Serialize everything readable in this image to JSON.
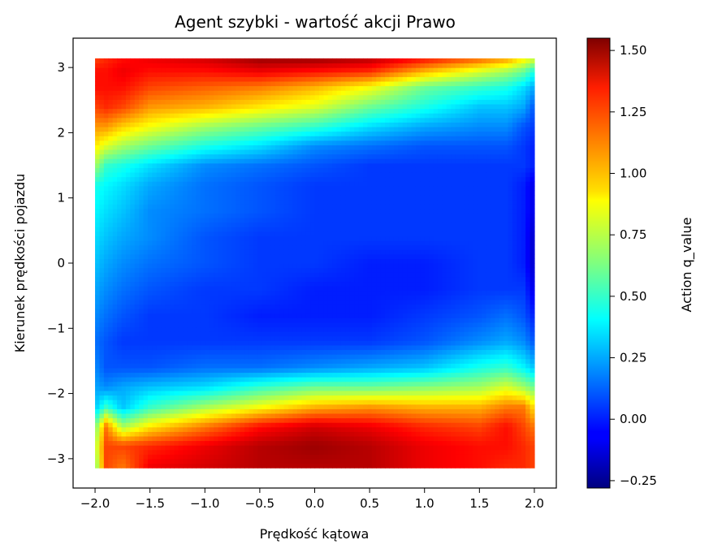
{
  "chart_data": {
    "type": "heatmap",
    "title": "Agent szybki - wartość akcji Prawo",
    "xlabel": "Prędkość kątowa",
    "ylabel": "Kierunek prędkości pojazdu",
    "xlim": [
      -2.2,
      2.2
    ],
    "ylim": [
      -3.45,
      3.45
    ],
    "x_ticks": [
      "−2.0",
      "−1.5",
      "−1.0",
      "−0.5",
      "0.0",
      "0.5",
      "1.0",
      "1.5",
      "2.0"
    ],
    "y_ticks": [
      "−3",
      "−2",
      "−1",
      "0",
      "1",
      "2",
      "3"
    ],
    "x_tick_values": [
      -2.0,
      -1.5,
      -1.0,
      -0.5,
      0.0,
      0.5,
      1.0,
      1.5,
      2.0
    ],
    "y_tick_values": [
      -3,
      -2,
      -1,
      0,
      1,
      2,
      3
    ],
    "x_range": [
      -2.0,
      2.0
    ],
    "y_range": [
      -3.14,
      3.14
    ],
    "y_grid": [
      -3.14,
      -2.8,
      -2.5,
      -2.2,
      -1.9,
      -1.6,
      -1.2,
      -0.8,
      -0.4,
      0.0,
      0.4,
      0.8,
      1.2,
      1.5,
      1.8,
      2.1,
      2.4,
      2.7,
      2.95,
      3.14
    ],
    "x_grid": [
      -2.0,
      -1.9,
      -1.75,
      -1.5,
      -1.0,
      -0.5,
      0.0,
      0.5,
      1.0,
      1.5,
      1.75,
      1.9,
      2.0
    ],
    "z": [
      [
        0.6,
        1.2,
        1.1,
        1.35,
        1.4,
        1.45,
        1.45,
        1.45,
        1.35,
        1.3,
        1.25,
        1.25,
        1.2
      ],
      [
        0.7,
        1.2,
        1.2,
        1.25,
        1.35,
        1.45,
        1.5,
        1.45,
        1.35,
        1.3,
        1.3,
        1.25,
        1.2
      ],
      [
        0.6,
        1.1,
        0.7,
        0.9,
        1.1,
        1.3,
        1.4,
        1.35,
        1.25,
        1.2,
        1.3,
        1.2,
        1.1
      ],
      [
        0.3,
        0.5,
        0.3,
        0.5,
        0.7,
        0.85,
        1.0,
        1.05,
        1.0,
        1.0,
        1.1,
        1.1,
        0.9
      ],
      [
        0.25,
        0.2,
        0.25,
        0.3,
        0.35,
        0.5,
        0.6,
        0.6,
        0.65,
        0.7,
        0.8,
        0.7,
        0.6
      ],
      [
        0.2,
        0.1,
        0.1,
        0.1,
        0.15,
        0.15,
        0.2,
        0.25,
        0.3,
        0.45,
        0.5,
        0.4,
        0.3
      ],
      [
        0.15,
        0.1,
        0.05,
        0.05,
        0.05,
        0.05,
        0.05,
        0.05,
        0.1,
        0.2,
        0.25,
        0.2,
        0.1
      ],
      [
        0.2,
        0.15,
        0.1,
        0.05,
        0.05,
        0.0,
        0.0,
        0.0,
        0.05,
        0.1,
        0.15,
        0.1,
        0.0
      ],
      [
        0.25,
        0.2,
        0.15,
        0.1,
        0.05,
        0.05,
        0.0,
        0.0,
        0.0,
        0.05,
        0.05,
        0.05,
        -0.1
      ],
      [
        0.3,
        0.25,
        0.2,
        0.15,
        0.1,
        0.05,
        0.05,
        0.0,
        0.0,
        0.05,
        0.05,
        0.0,
        -0.15
      ],
      [
        0.35,
        0.3,
        0.25,
        0.2,
        0.1,
        0.05,
        0.05,
        0.05,
        0.05,
        0.05,
        0.05,
        0.0,
        -0.15
      ],
      [
        0.4,
        0.35,
        0.3,
        0.2,
        0.15,
        0.1,
        0.05,
        0.05,
        0.05,
        0.05,
        0.05,
        0.0,
        -0.1
      ],
      [
        0.45,
        0.4,
        0.35,
        0.25,
        0.15,
        0.1,
        0.05,
        0.05,
        0.05,
        0.05,
        0.05,
        0.0,
        -0.1
      ],
      [
        0.7,
        0.5,
        0.45,
        0.35,
        0.2,
        0.15,
        0.1,
        0.05,
        0.05,
        0.05,
        0.05,
        0.05,
        0.0
      ],
      [
        0.9,
        0.8,
        0.7,
        0.6,
        0.45,
        0.35,
        0.2,
        0.15,
        0.1,
        0.1,
        0.1,
        0.05,
        0.0
      ],
      [
        1.05,
        1.05,
        0.95,
        0.85,
        0.7,
        0.6,
        0.5,
        0.35,
        0.25,
        0.2,
        0.2,
        0.1,
        0.05
      ],
      [
        1.2,
        1.25,
        1.2,
        1.05,
        1.0,
        0.9,
        0.8,
        0.6,
        0.45,
        0.3,
        0.3,
        0.25,
        0.1
      ],
      [
        1.3,
        1.3,
        1.3,
        1.2,
        1.15,
        1.1,
        1.0,
        0.85,
        0.6,
        0.5,
        0.45,
        0.35,
        0.25
      ],
      [
        1.3,
        1.3,
        1.35,
        1.3,
        1.3,
        1.35,
        1.3,
        1.25,
        1.0,
        0.8,
        0.7,
        0.6,
        0.45
      ],
      [
        1.2,
        1.25,
        1.3,
        1.35,
        1.4,
        1.5,
        1.5,
        1.45,
        1.3,
        1.15,
        1.05,
        0.9,
        0.8
      ]
    ],
    "colorbar": {
      "label": "Action q_value",
      "min": -0.28,
      "max": 1.55,
      "ticks": [
        "−0.25",
        "0.00",
        "0.25",
        "0.50",
        "0.75",
        "1.00",
        "1.25",
        "1.50"
      ],
      "tick_values": [
        -0.25,
        0.0,
        0.25,
        0.5,
        0.75,
        1.0,
        1.25,
        1.5
      ],
      "colormap": "jet"
    },
    "grid": false
  }
}
